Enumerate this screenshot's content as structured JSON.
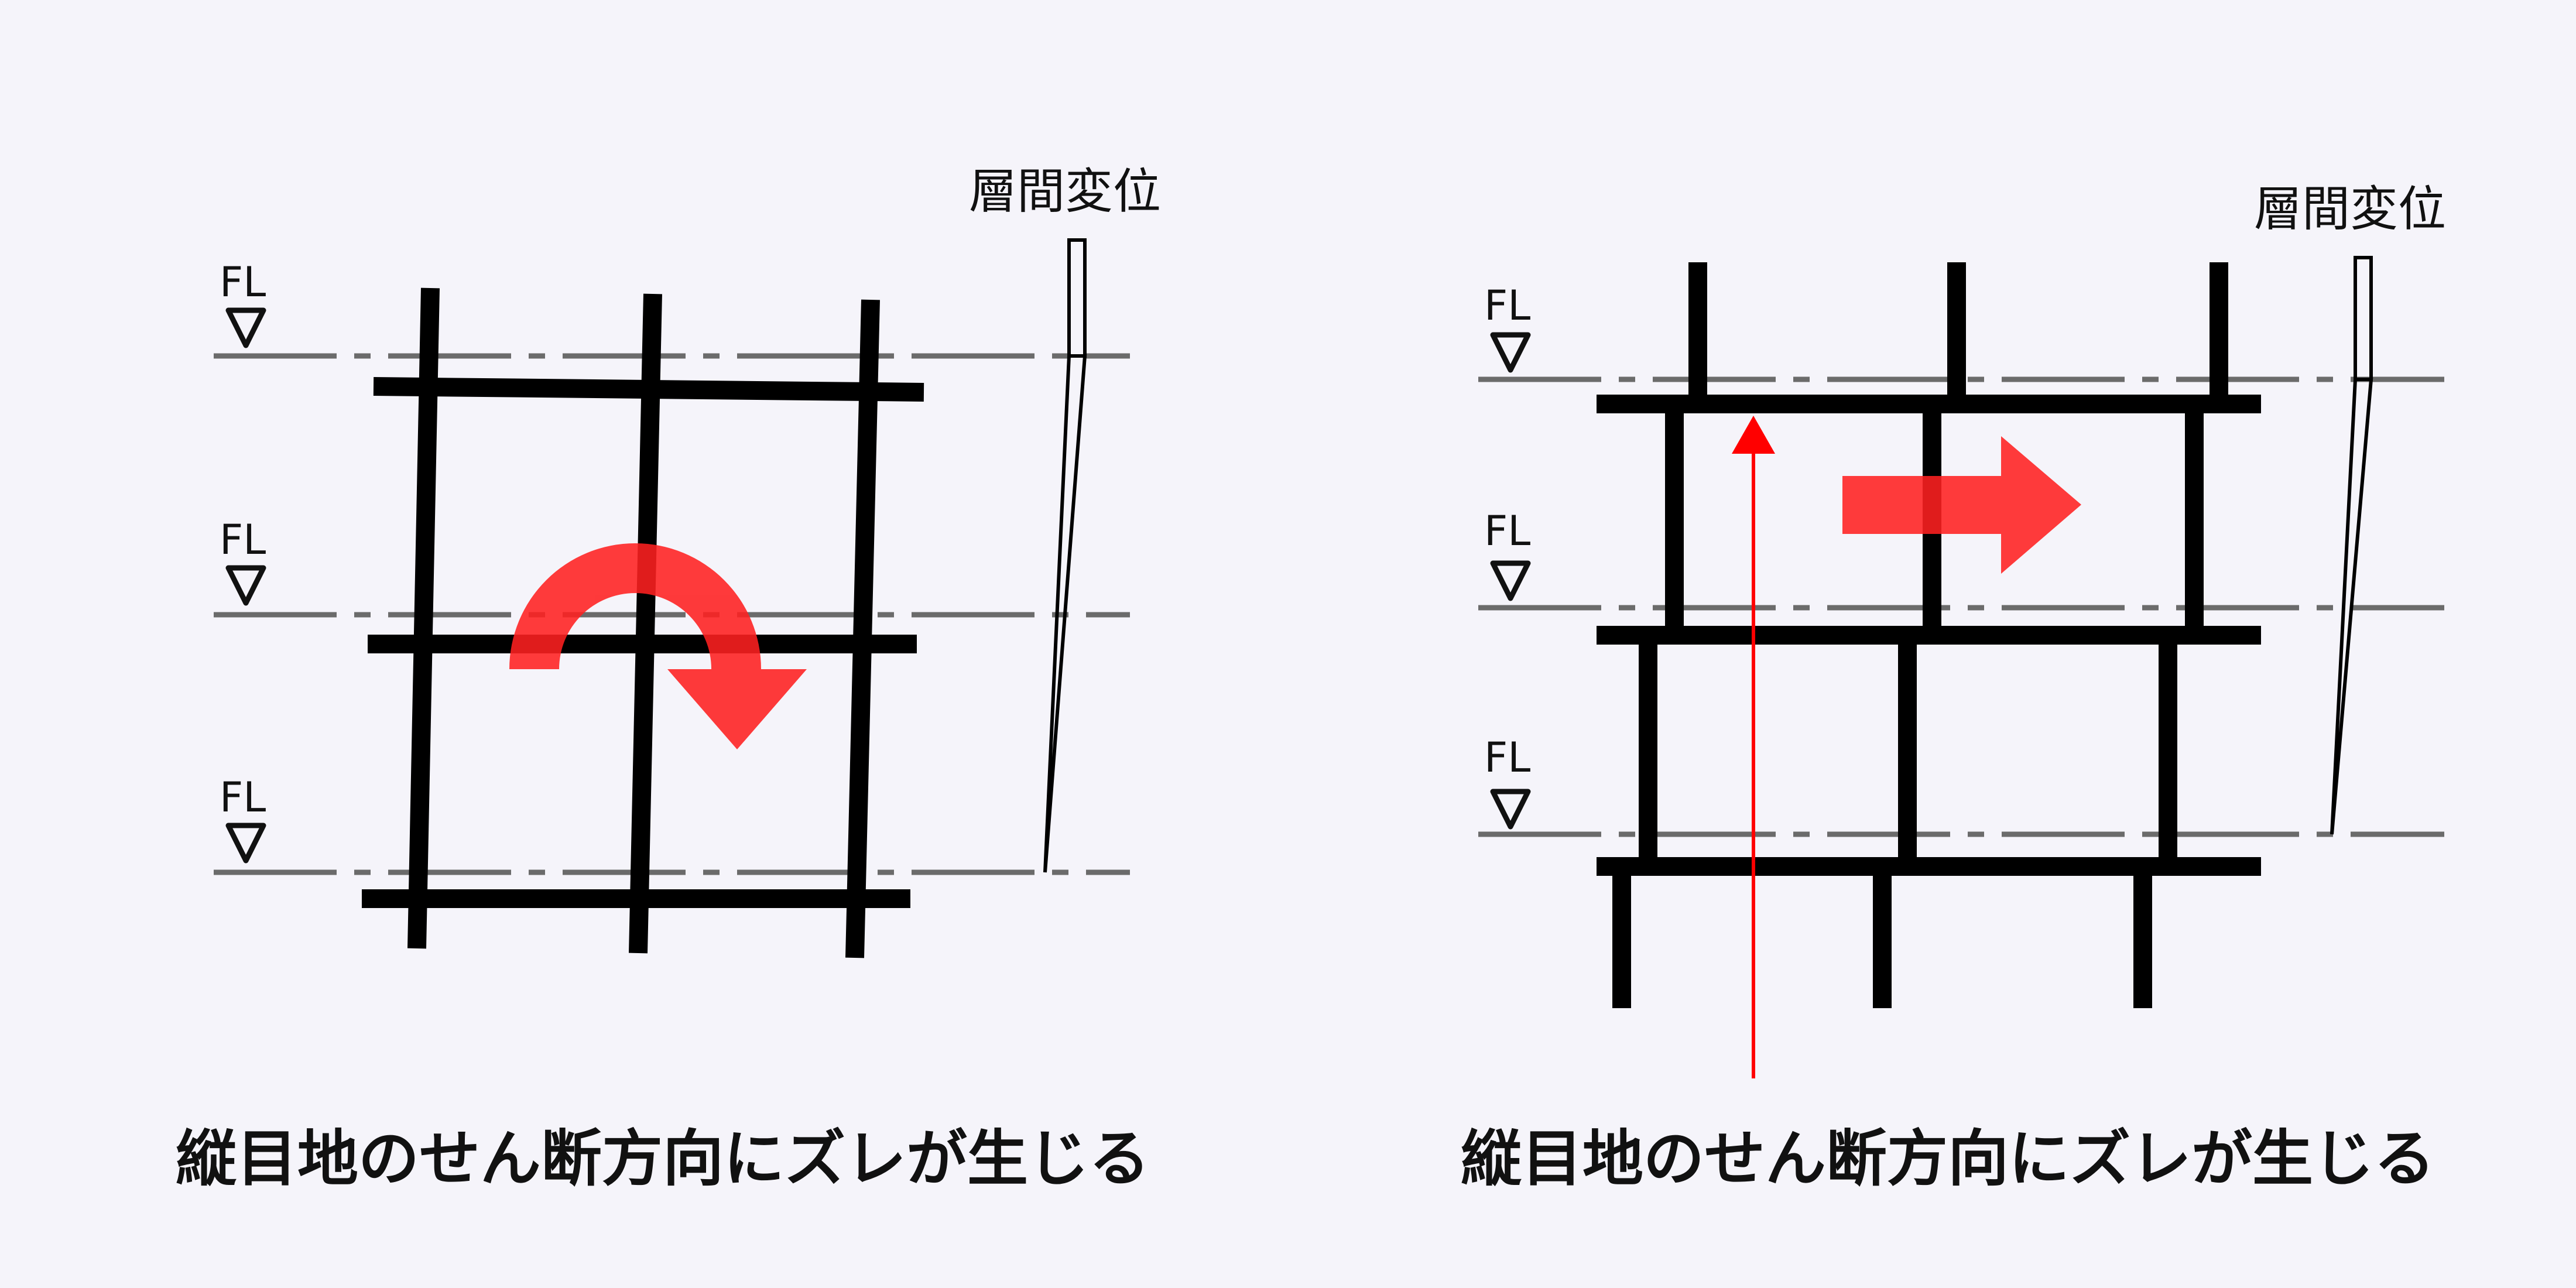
{
  "left_panel": {
    "floor_markers": [
      "FL",
      "FL",
      "FL"
    ],
    "drift_label": "層間変位",
    "caption": "縦目地のせん断方向にズレが生じる",
    "motion_arrow_type": "rotation",
    "arrow_color": "#ff2020"
  },
  "right_panel": {
    "floor_markers": [
      "FL",
      "FL",
      "FL"
    ],
    "drift_label": "層間変位",
    "caption": "縦目地のせん断方向にズレが生じる",
    "motion_arrow_type": "translation",
    "arrow_color": "#ff2020",
    "reference_line_color": "#ff0000"
  },
  "colors": {
    "structure": "#000000",
    "floor_line": "#6b6b6b",
    "background": "#f5f4fa"
  }
}
